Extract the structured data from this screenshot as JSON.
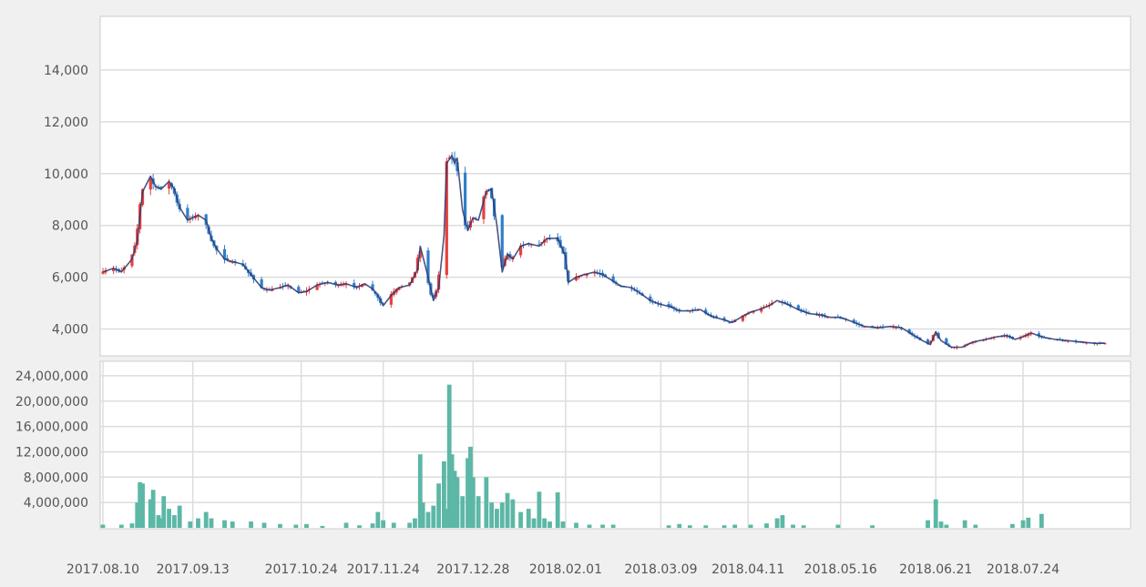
{
  "chart_data": [
    {
      "type": "candlestick",
      "panel": "price",
      "ylim": [
        3000,
        16000
      ],
      "yticks": [
        4000,
        6000,
        8000,
        10000,
        12000,
        14000
      ],
      "ytick_labels": [
        "4,000",
        "6,000",
        "8,000",
        "10,000",
        "12,000",
        "14,000"
      ],
      "grid": true,
      "x_date_range": [
        "2017-08-10",
        "2018-08-24"
      ],
      "up_color": "#e8403b",
      "down_color": "#2f7fc8",
      "ma_color": "#2b3770",
      "price_path": [
        [
          "2017-08-10",
          6200
        ],
        [
          "2017-08-14",
          6350
        ],
        [
          "2017-08-17",
          6200
        ],
        [
          "2017-08-21",
          6700
        ],
        [
          "2017-08-23",
          7400
        ],
        [
          "2017-08-25",
          9300
        ],
        [
          "2017-08-28",
          9900
        ],
        [
          "2017-08-30",
          9500
        ],
        [
          "2017-09-01",
          9400
        ],
        [
          "2017-09-04",
          9700
        ],
        [
          "2017-09-06",
          9400
        ],
        [
          "2017-09-08",
          8700
        ],
        [
          "2017-09-11",
          8200
        ],
        [
          "2017-09-13",
          8300
        ],
        [
          "2017-09-15",
          8400
        ],
        [
          "2017-09-18",
          8200
        ],
        [
          "2017-09-20",
          7500
        ],
        [
          "2017-09-22",
          7100
        ],
        [
          "2017-09-25",
          6700
        ],
        [
          "2017-09-28",
          6600
        ],
        [
          "2017-10-02",
          6500
        ],
        [
          "2017-10-05",
          6100
        ],
        [
          "2017-10-09",
          5600
        ],
        [
          "2017-10-12",
          5500
        ],
        [
          "2017-10-16",
          5600
        ],
        [
          "2017-10-19",
          5700
        ],
        [
          "2017-10-23",
          5400
        ],
        [
          "2017-10-26",
          5450
        ],
        [
          "2017-10-30",
          5700
        ],
        [
          "2017-11-03",
          5800
        ],
        [
          "2017-11-07",
          5700
        ],
        [
          "2017-11-10",
          5750
        ],
        [
          "2017-11-14",
          5600
        ],
        [
          "2017-11-17",
          5750
        ],
        [
          "2017-11-20",
          5550
        ],
        [
          "2017-11-22",
          5300
        ],
        [
          "2017-11-24",
          4900
        ],
        [
          "2017-11-27",
          5300
        ],
        [
          "2017-11-30",
          5600
        ],
        [
          "2017-12-04",
          5700
        ],
        [
          "2017-12-07",
          6300
        ],
        [
          "2017-12-08",
          7200
        ],
        [
          "2017-12-11",
          6000
        ],
        [
          "2017-12-13",
          5100
        ],
        [
          "2017-12-15",
          5600
        ],
        [
          "2017-12-17",
          7600
        ],
        [
          "2017-12-18",
          10400
        ],
        [
          "2017-12-20",
          10700
        ],
        [
          "2017-12-21",
          10400
        ],
        [
          "2017-12-22",
          10600
        ],
        [
          "2017-12-24",
          8600
        ],
        [
          "2017-12-26",
          7800
        ],
        [
          "2017-12-28",
          8300
        ],
        [
          "2017-12-30",
          8200
        ],
        [
          "2018-01-02",
          9300
        ],
        [
          "2018-01-04",
          9400
        ],
        [
          "2018-01-06",
          8000
        ],
        [
          "2018-01-08",
          6200
        ],
        [
          "2018-01-10",
          6900
        ],
        [
          "2018-01-12",
          6700
        ],
        [
          "2018-01-15",
          7200
        ],
        [
          "2018-01-18",
          7300
        ],
        [
          "2018-01-22",
          7200
        ],
        [
          "2018-01-25",
          7500
        ],
        [
          "2018-01-29",
          7500
        ],
        [
          "2018-02-01",
          6800
        ],
        [
          "2018-02-02",
          5800
        ],
        [
          "2018-02-05",
          6000
        ],
        [
          "2018-02-08",
          6100
        ],
        [
          "2018-02-12",
          6200
        ],
        [
          "2018-02-15",
          6100
        ],
        [
          "2018-02-19",
          5850
        ],
        [
          "2018-02-22",
          5650
        ],
        [
          "2018-02-26",
          5600
        ],
        [
          "2018-03-01",
          5400
        ],
        [
          "2018-03-05",
          5100
        ],
        [
          "2018-03-09",
          4950
        ],
        [
          "2018-03-13",
          4850
        ],
        [
          "2018-03-16",
          4700
        ],
        [
          "2018-03-20",
          4700
        ],
        [
          "2018-03-24",
          4750
        ],
        [
          "2018-03-28",
          4500
        ],
        [
          "2018-04-02",
          4350
        ],
        [
          "2018-04-05",
          4250
        ],
        [
          "2018-04-09",
          4500
        ],
        [
          "2018-04-12",
          4650
        ],
        [
          "2018-04-15",
          4750
        ],
        [
          "2018-04-19",
          4900
        ],
        [
          "2018-04-22",
          5100
        ],
        [
          "2018-04-25",
          5000
        ],
        [
          "2018-04-30",
          4750
        ],
        [
          "2018-05-04",
          4600
        ],
        [
          "2018-05-08",
          4550
        ],
        [
          "2018-05-12",
          4450
        ],
        [
          "2018-05-16",
          4450
        ],
        [
          "2018-05-20",
          4300
        ],
        [
          "2018-05-25",
          4100
        ],
        [
          "2018-05-30",
          4050
        ],
        [
          "2018-06-04",
          4100
        ],
        [
          "2018-06-08",
          4050
        ],
        [
          "2018-06-12",
          3800
        ],
        [
          "2018-06-16",
          3550
        ],
        [
          "2018-06-19",
          3400
        ],
        [
          "2018-06-21",
          3900
        ],
        [
          "2018-06-23",
          3550
        ],
        [
          "2018-06-27",
          3300
        ],
        [
          "2018-07-01",
          3300
        ],
        [
          "2018-07-05",
          3500
        ],
        [
          "2018-07-10",
          3600
        ],
        [
          "2018-07-14",
          3700
        ],
        [
          "2018-07-18",
          3750
        ],
        [
          "2018-07-21",
          3600
        ],
        [
          "2018-07-24",
          3700
        ],
        [
          "2018-07-27",
          3850
        ],
        [
          "2018-07-31",
          3700
        ],
        [
          "2018-08-05",
          3600
        ],
        [
          "2018-08-10",
          3550
        ],
        [
          "2018-08-15",
          3500
        ],
        [
          "2018-08-20",
          3450
        ],
        [
          "2018-08-24",
          3450
        ]
      ]
    },
    {
      "type": "bar",
      "panel": "volume",
      "ylim": [
        0,
        26000000
      ],
      "yticks": [
        4000000,
        8000000,
        12000000,
        16000000,
        20000000,
        24000000
      ],
      "ytick_labels": [
        "4,000,000",
        "8,000,000",
        "12,000,000",
        "16,000,000",
        "20,000,000",
        "24,000,000"
      ],
      "grid": true,
      "bar_color": "#5cb7a6",
      "x_tick_labels": [
        "2017.08.10",
        "2017.09.13",
        "2017.10.24",
        "2017.11.24",
        "2017.12.28",
        "2018.02.01",
        "2018.03.09",
        "2018.04.11",
        "2018.05.16",
        "2018.06.21",
        "2018.07.24"
      ],
      "x_tick_dates": [
        "2017-08-10",
        "2017-09-13",
        "2017-10-24",
        "2017-11-24",
        "2017-12-28",
        "2018-02-01",
        "2018-03-09",
        "2018-04-11",
        "2018-05-16",
        "2018-06-21",
        "2018-07-24"
      ],
      "volume_path": [
        [
          "2017-08-10",
          500000
        ],
        [
          "2017-08-17",
          500000
        ],
        [
          "2017-08-21",
          700000
        ],
        [
          "2017-08-23",
          4000000
        ],
        [
          "2017-08-24",
          7200000
        ],
        [
          "2017-08-25",
          7000000
        ],
        [
          "2017-08-28",
          4500000
        ],
        [
          "2017-08-29",
          6000000
        ],
        [
          "2017-08-31",
          2000000
        ],
        [
          "2017-09-01",
          1500000
        ],
        [
          "2017-09-02",
          5000000
        ],
        [
          "2017-09-04",
          3000000
        ],
        [
          "2017-09-06",
          2000000
        ],
        [
          "2017-09-08",
          3500000
        ],
        [
          "2017-09-12",
          1000000
        ],
        [
          "2017-09-15",
          1500000
        ],
        [
          "2017-09-18",
          2500000
        ],
        [
          "2017-09-20",
          1500000
        ],
        [
          "2017-09-25",
          1200000
        ],
        [
          "2017-09-28",
          1000000
        ],
        [
          "2017-10-05",
          1000000
        ],
        [
          "2017-10-10",
          800000
        ],
        [
          "2017-10-16",
          600000
        ],
        [
          "2017-10-22",
          500000
        ],
        [
          "2017-10-26",
          600000
        ],
        [
          "2017-11-01",
          300000
        ],
        [
          "2017-11-10",
          800000
        ],
        [
          "2017-11-15",
          400000
        ],
        [
          "2017-11-20",
          700000
        ],
        [
          "2017-11-22",
          2500000
        ],
        [
          "2017-11-24",
          1200000
        ],
        [
          "2017-11-28",
          800000
        ],
        [
          "2017-12-04",
          800000
        ],
        [
          "2017-12-06",
          1500000
        ],
        [
          "2017-12-08",
          11600000
        ],
        [
          "2017-12-09",
          4000000
        ],
        [
          "2017-12-11",
          2500000
        ],
        [
          "2017-12-13",
          3500000
        ],
        [
          "2017-12-15",
          7000000
        ],
        [
          "2017-12-17",
          10500000
        ],
        [
          "2017-12-18",
          3000000
        ],
        [
          "2017-12-19",
          22600000
        ],
        [
          "2017-12-20",
          11600000
        ],
        [
          "2017-12-21",
          9000000
        ],
        [
          "2017-12-22",
          8000000
        ],
        [
          "2017-12-24",
          5000000
        ],
        [
          "2017-12-26",
          11000000
        ],
        [
          "2017-12-27",
          12800000
        ],
        [
          "2017-12-28",
          8000000
        ],
        [
          "2017-12-30",
          5000000
        ],
        [
          "2018-01-02",
          8000000
        ],
        [
          "2018-01-04",
          4000000
        ],
        [
          "2018-01-06",
          3000000
        ],
        [
          "2018-01-08",
          4000000
        ],
        [
          "2018-01-10",
          5500000
        ],
        [
          "2018-01-12",
          4500000
        ],
        [
          "2018-01-15",
          2500000
        ],
        [
          "2018-01-18",
          3000000
        ],
        [
          "2018-01-20",
          1500000
        ],
        [
          "2018-01-22",
          5700000
        ],
        [
          "2018-01-24",
          1500000
        ],
        [
          "2018-01-26",
          1000000
        ],
        [
          "2018-01-29",
          5600000
        ],
        [
          "2018-01-31",
          1000000
        ],
        [
          "2018-02-05",
          800000
        ],
        [
          "2018-02-10",
          500000
        ],
        [
          "2018-02-15",
          500000
        ],
        [
          "2018-02-19",
          500000
        ],
        [
          "2018-03-12",
          400000
        ],
        [
          "2018-03-16",
          600000
        ],
        [
          "2018-03-20",
          400000
        ],
        [
          "2018-03-26",
          400000
        ],
        [
          "2018-04-02",
          400000
        ],
        [
          "2018-04-06",
          500000
        ],
        [
          "2018-04-12",
          500000
        ],
        [
          "2018-04-18",
          700000
        ],
        [
          "2018-04-22",
          1500000
        ],
        [
          "2018-04-24",
          2000000
        ],
        [
          "2018-04-28",
          500000
        ],
        [
          "2018-05-02",
          400000
        ],
        [
          "2018-05-15",
          500000
        ],
        [
          "2018-05-28",
          400000
        ],
        [
          "2018-06-18",
          1200000
        ],
        [
          "2018-06-21",
          4500000
        ],
        [
          "2018-06-23",
          1000000
        ],
        [
          "2018-06-25",
          500000
        ],
        [
          "2018-07-02",
          1200000
        ],
        [
          "2018-07-06",
          500000
        ],
        [
          "2018-07-20",
          600000
        ],
        [
          "2018-07-24",
          1200000
        ],
        [
          "2018-07-26",
          1600000
        ],
        [
          "2018-07-31",
          2200000
        ]
      ]
    }
  ]
}
